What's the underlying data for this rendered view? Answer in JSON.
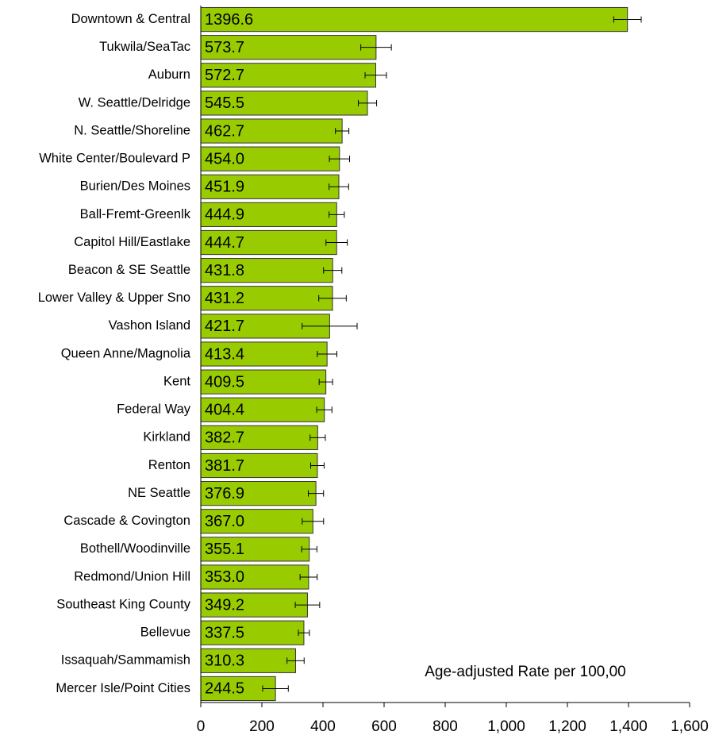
{
  "chart_data": {
    "type": "hbar",
    "axis_label": "Age-adjusted Rate per 100,00",
    "categories": [
      "Downtown & Central",
      "Tukwila/SeaTac",
      "Auburn",
      "W. Seattle/Delridge",
      "N. Seattle/Shoreline",
      "White Center/Boulevard P",
      "Burien/Des Moines",
      "Ball-Fremt-Greenlk",
      "Capitol Hill/Eastlake",
      "Beacon & SE Seattle",
      "Lower Valley & Upper Sno",
      "Vashon Island",
      "Queen Anne/Magnolia",
      "Kent",
      "Federal Way",
      "Kirkland",
      "Renton",
      "NE Seattle",
      "Cascade & Covington",
      "Bothell/Woodinville",
      "Redmond/Union Hill",
      "Southeast King County",
      "Bellevue",
      "Issaquah/Sammamish",
      "Mercer Isle/Point Cities"
    ],
    "values": [
      1396.6,
      573.7,
      572.7,
      545.5,
      462.7,
      454.0,
      451.9,
      444.9,
      444.7,
      431.8,
      431.2,
      421.7,
      413.4,
      409.5,
      404.4,
      382.7,
      381.7,
      376.9,
      367.0,
      355.1,
      353.0,
      349.2,
      337.5,
      310.3,
      244.5
    ],
    "value_labels": [
      "1396.6",
      "573.7",
      "572.7",
      "545.5",
      "462.7",
      "454.0",
      "451.9",
      "444.9",
      "444.7",
      "431.8",
      "431.2",
      "421.7",
      "413.4",
      "409.5",
      "404.4",
      "382.7",
      "381.7",
      "376.9",
      "367.0",
      "355.1",
      "353.0",
      "349.2",
      "337.5",
      "310.3",
      "244.5"
    ],
    "errors": [
      45,
      50,
      35,
      30,
      22,
      33,
      32,
      25,
      35,
      30,
      45,
      90,
      32,
      22,
      25,
      25,
      22,
      25,
      35,
      25,
      28,
      40,
      18,
      28,
      42
    ],
    "color": "#99cc00",
    "xlim": [
      0,
      1600
    ],
    "xticks": [
      0,
      200,
      400,
      600,
      800,
      {
        "value": 1000,
        "label": "1,000"
      },
      {
        "value": 1200,
        "label": "1,200"
      },
      {
        "value": 1400,
        "label": "1,400"
      },
      {
        "value": 1600,
        "label": "1,600"
      }
    ]
  }
}
